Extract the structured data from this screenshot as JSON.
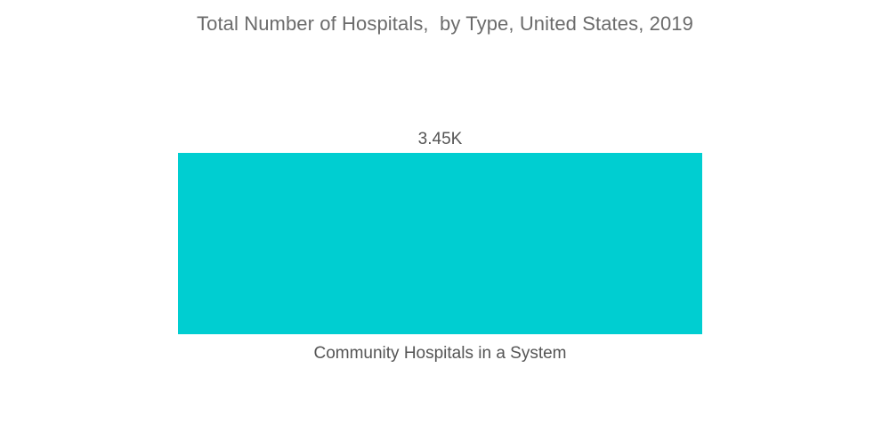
{
  "chart_data": {
    "type": "bar",
    "title": "Total Number of Hospitals,  by Type, United States, 2019",
    "categories": [
      "Community Hospitals in a System"
    ],
    "values": [
      3450
    ],
    "data_labels": [
      "3.45K"
    ],
    "xlabel": "",
    "ylabel": "",
    "ylim": [
      0,
      3450
    ],
    "grid": false,
    "legend": "none",
    "bar_color": "#00CED1"
  }
}
